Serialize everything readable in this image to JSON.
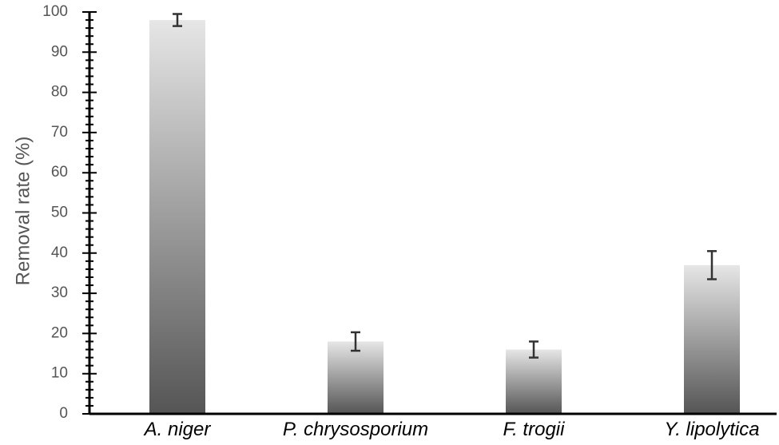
{
  "chart_data": {
    "type": "bar",
    "title": "",
    "xlabel": "",
    "ylabel": "Removal rate (%)",
    "ylim": [
      0,
      100
    ],
    "major_ticks": [
      0,
      10,
      20,
      30,
      40,
      50,
      60,
      70,
      80,
      90,
      100
    ],
    "minor_tick_step": 2,
    "grid": false,
    "legend": "none",
    "categories": [
      "A. niger",
      "P. chrysosporium",
      "F. trogii",
      "Y. lipolytica"
    ],
    "values": [
      98,
      18,
      16,
      37
    ],
    "error": [
      1.5,
      2.3,
      2.0,
      3.5
    ],
    "colors": {
      "bar_top": "#e6e6e6",
      "bar_bottom": "#555555",
      "axis": "#000000",
      "text": "#555555",
      "category_text": "#000000"
    }
  }
}
